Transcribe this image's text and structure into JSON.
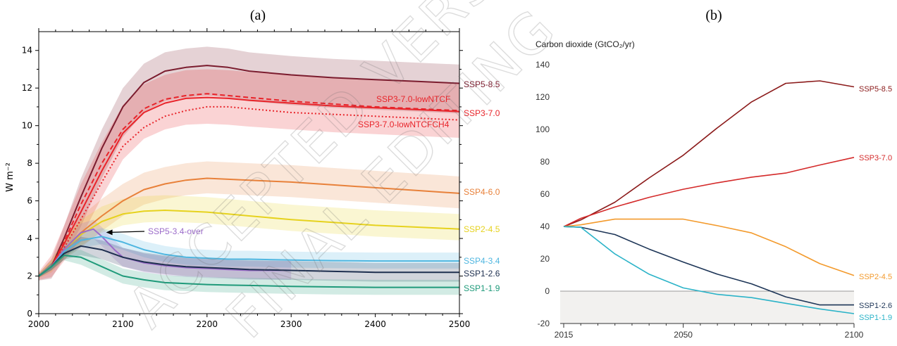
{
  "panel_a_label": "(a)",
  "panel_b_label": "(b)",
  "watermark": "ACCEPTED VERSION FINAL EDITING",
  "chart_data": [
    {
      "type": "line",
      "panel": "(a)",
      "ylabel": "W m⁻²",
      "xlim": [
        2000,
        2500
      ],
      "ylim": [
        0,
        15
      ],
      "xticks": [
        2000,
        2100,
        2200,
        2300,
        2400,
        2500
      ],
      "yticks": [
        0,
        2,
        4,
        6,
        8,
        10,
        12,
        14
      ],
      "grid": false,
      "legend": "labels at right end of lines",
      "annotation": {
        "text": "SSP5-3.4-over",
        "target": [
          2075,
          4.4
        ]
      },
      "series": [
        {
          "name": "SSP5-8.5",
          "color": "#7b1c2e",
          "style": "solid",
          "x": [
            2000,
            2015,
            2030,
            2050,
            2075,
            2100,
            2125,
            2150,
            2175,
            2200,
            2225,
            2250,
            2300,
            2350,
            2400,
            2450,
            2500
          ],
          "y": [
            2.0,
            2.5,
            4.0,
            6.2,
            8.8,
            11.0,
            12.3,
            12.9,
            13.1,
            13.2,
            13.1,
            12.9,
            12.7,
            12.55,
            12.45,
            12.35,
            12.25
          ],
          "band": [
            1.0,
            1.6
          ]
        },
        {
          "name": "SSP3-7.0-lowNTCF",
          "color": "#e8242a",
          "style": "dashed",
          "x": [
            2000,
            2015,
            2030,
            2050,
            2075,
            2100,
            2125,
            2150,
            2175,
            2200,
            2225,
            2250,
            2300,
            2350,
            2400,
            2450,
            2500
          ],
          "y": [
            2.0,
            2.5,
            3.8,
            5.8,
            8.0,
            9.8,
            10.9,
            11.4,
            11.6,
            11.7,
            11.6,
            11.5,
            11.3,
            11.15,
            11.0,
            10.9,
            10.8
          ],
          "band": null
        },
        {
          "name": "SSP3-7.0",
          "color": "#e8242a",
          "style": "solid",
          "x": [
            2000,
            2015,
            2030,
            2050,
            2075,
            2100,
            2125,
            2150,
            2175,
            2200,
            2225,
            2250,
            2300,
            2350,
            2400,
            2450,
            2500
          ],
          "y": [
            2.0,
            2.5,
            3.7,
            5.4,
            7.6,
            9.6,
            10.7,
            11.2,
            11.45,
            11.5,
            11.45,
            11.35,
            11.2,
            11.05,
            10.95,
            10.85,
            10.75
          ],
          "band": [
            1.5,
            1.4
          ]
        },
        {
          "name": "SSP3-7.0-lowNTCFCH4",
          "color": "#e8242a",
          "style": "dotted",
          "x": [
            2000,
            2015,
            2030,
            2050,
            2075,
            2100,
            2125,
            2150,
            2175,
            2200,
            2225,
            2250,
            2300,
            2350,
            2400,
            2450,
            2500
          ],
          "y": [
            2.0,
            2.5,
            3.5,
            5.0,
            7.0,
            8.9,
            9.9,
            10.5,
            10.8,
            11.0,
            11.0,
            10.9,
            10.7,
            10.6,
            10.5,
            10.4,
            10.3
          ],
          "band": null
        },
        {
          "name": "SSP4-6.0",
          "color": "#e8813a",
          "style": "solid",
          "x": [
            2000,
            2015,
            2030,
            2050,
            2075,
            2100,
            2125,
            2150,
            2175,
            2200,
            2225,
            2250,
            2300,
            2350,
            2400,
            2450,
            2500
          ],
          "y": [
            2.0,
            2.5,
            3.4,
            4.3,
            5.2,
            6.0,
            6.6,
            6.9,
            7.1,
            7.2,
            7.15,
            7.1,
            7.0,
            6.85,
            6.7,
            6.55,
            6.4
          ],
          "band": [
            0.9,
            0.8
          ]
        },
        {
          "name": "SSP2-4.5",
          "color": "#e6d21e",
          "style": "solid",
          "x": [
            2000,
            2015,
            2030,
            2050,
            2075,
            2100,
            2125,
            2150,
            2175,
            2200,
            2225,
            2250,
            2300,
            2350,
            2400,
            2450,
            2500
          ],
          "y": [
            2.0,
            2.5,
            3.4,
            4.2,
            4.9,
            5.3,
            5.45,
            5.5,
            5.45,
            5.4,
            5.3,
            5.2,
            5.0,
            4.85,
            4.7,
            4.6,
            4.5
          ],
          "band": [
            0.8,
            0.6
          ]
        },
        {
          "name": "SSP5-3.4-over",
          "color": "#9b6bc9",
          "style": "solid",
          "x": [
            2000,
            2015,
            2030,
            2050,
            2065,
            2075,
            2090,
            2100,
            2125,
            2150,
            2175,
            2200,
            2225,
            2250,
            2300
          ],
          "y": [
            2.0,
            2.5,
            3.4,
            4.3,
            4.5,
            4.1,
            3.4,
            3.0,
            2.7,
            2.55,
            2.45,
            2.4,
            2.35,
            2.3,
            2.3
          ],
          "band": [
            0.5,
            0.5
          ]
        },
        {
          "name": "SSP4-3.4",
          "color": "#4fb6e0",
          "style": "solid",
          "x": [
            2000,
            2015,
            2030,
            2050,
            2075,
            2100,
            2125,
            2150,
            2175,
            2200,
            2225,
            2250,
            2300,
            2350,
            2400,
            2450,
            2500
          ],
          "y": [
            2.0,
            2.5,
            3.3,
            3.9,
            4.1,
            3.8,
            3.4,
            3.15,
            3.0,
            2.95,
            2.9,
            2.9,
            2.85,
            2.82,
            2.8,
            2.8,
            2.8
          ],
          "band": [
            0.45,
            0.4
          ]
        },
        {
          "name": "SSP1-2.6",
          "color": "#1e2f4f",
          "style": "solid",
          "x": [
            2000,
            2015,
            2030,
            2050,
            2075,
            2100,
            2125,
            2150,
            2175,
            2200,
            2225,
            2250,
            2300,
            2350,
            2400,
            2450,
            2500
          ],
          "y": [
            2.0,
            2.5,
            3.2,
            3.6,
            3.4,
            3.0,
            2.75,
            2.6,
            2.5,
            2.45,
            2.4,
            2.35,
            2.3,
            2.25,
            2.2,
            2.2,
            2.2
          ],
          "band": [
            0.5,
            0.5
          ]
        },
        {
          "name": "SSP1-1.9",
          "color": "#1f9a7a",
          "style": "solid",
          "x": [
            2000,
            2015,
            2030,
            2050,
            2075,
            2100,
            2125,
            2150,
            2175,
            2200,
            2225,
            2250,
            2300,
            2350,
            2400,
            2450,
            2500
          ],
          "y": [
            2.0,
            2.5,
            3.1,
            3.0,
            2.5,
            2.0,
            1.8,
            1.65,
            1.6,
            1.55,
            1.52,
            1.5,
            1.45,
            1.42,
            1.4,
            1.4,
            1.4
          ],
          "band": [
            0.4,
            0.4
          ]
        }
      ]
    },
    {
      "type": "line",
      "panel": "(b)",
      "title": "Carbon dioxide (GtCO₂/yr)",
      "xlim": [
        2015,
        2100
      ],
      "ylim": [
        -20,
        150
      ],
      "xticks": [
        2015,
        2050,
        2100
      ],
      "yticks": [
        -20,
        0,
        20,
        40,
        60,
        80,
        100,
        120,
        140
      ],
      "grid": false,
      "shaded_below_zero": true,
      "legend": "labels at right end of lines",
      "series": [
        {
          "name": "SSP5-8.5",
          "color": "#8b1a1a",
          "x": [
            2015,
            2020,
            2030,
            2040,
            2050,
            2060,
            2070,
            2080,
            2090,
            2100
          ],
          "y": [
            39.9,
            44,
            55,
            70,
            84,
            101,
            117,
            128.5,
            130,
            126.3
          ]
        },
        {
          "name": "SSP3-7.0",
          "color": "#d42a2a",
          "x": [
            2015,
            2020,
            2030,
            2040,
            2050,
            2060,
            2070,
            2080,
            2090,
            2100
          ],
          "y": [
            39.9,
            45,
            52,
            58,
            63,
            67,
            70.5,
            73,
            78,
            82.7
          ]
        },
        {
          "name": "SSP2-4.5",
          "color": "#f39a2c",
          "x": [
            2015,
            2020,
            2030,
            2040,
            2050,
            2060,
            2070,
            2080,
            2090,
            2100
          ],
          "y": [
            39.9,
            41,
            44.5,
            44.5,
            44.5,
            40.5,
            36,
            27.5,
            17,
            9.7
          ]
        },
        {
          "name": "SSP1-2.6",
          "color": "#1d3557",
          "x": [
            2015,
            2020,
            2030,
            2040,
            2050,
            2060,
            2070,
            2080,
            2090,
            2100
          ],
          "y": [
            39.9,
            39.5,
            35,
            26,
            18,
            10.5,
            4.5,
            -3.5,
            -8.5,
            -8.5
          ]
        },
        {
          "name": "SSP1-1.9",
          "color": "#2bb3c8",
          "x": [
            2015,
            2020,
            2030,
            2040,
            2050,
            2060,
            2070,
            2080,
            2090,
            2100
          ],
          "y": [
            39.9,
            39.5,
            23,
            10.5,
            2,
            -2,
            -4,
            -7.5,
            -11,
            -13.9
          ]
        }
      ]
    }
  ]
}
